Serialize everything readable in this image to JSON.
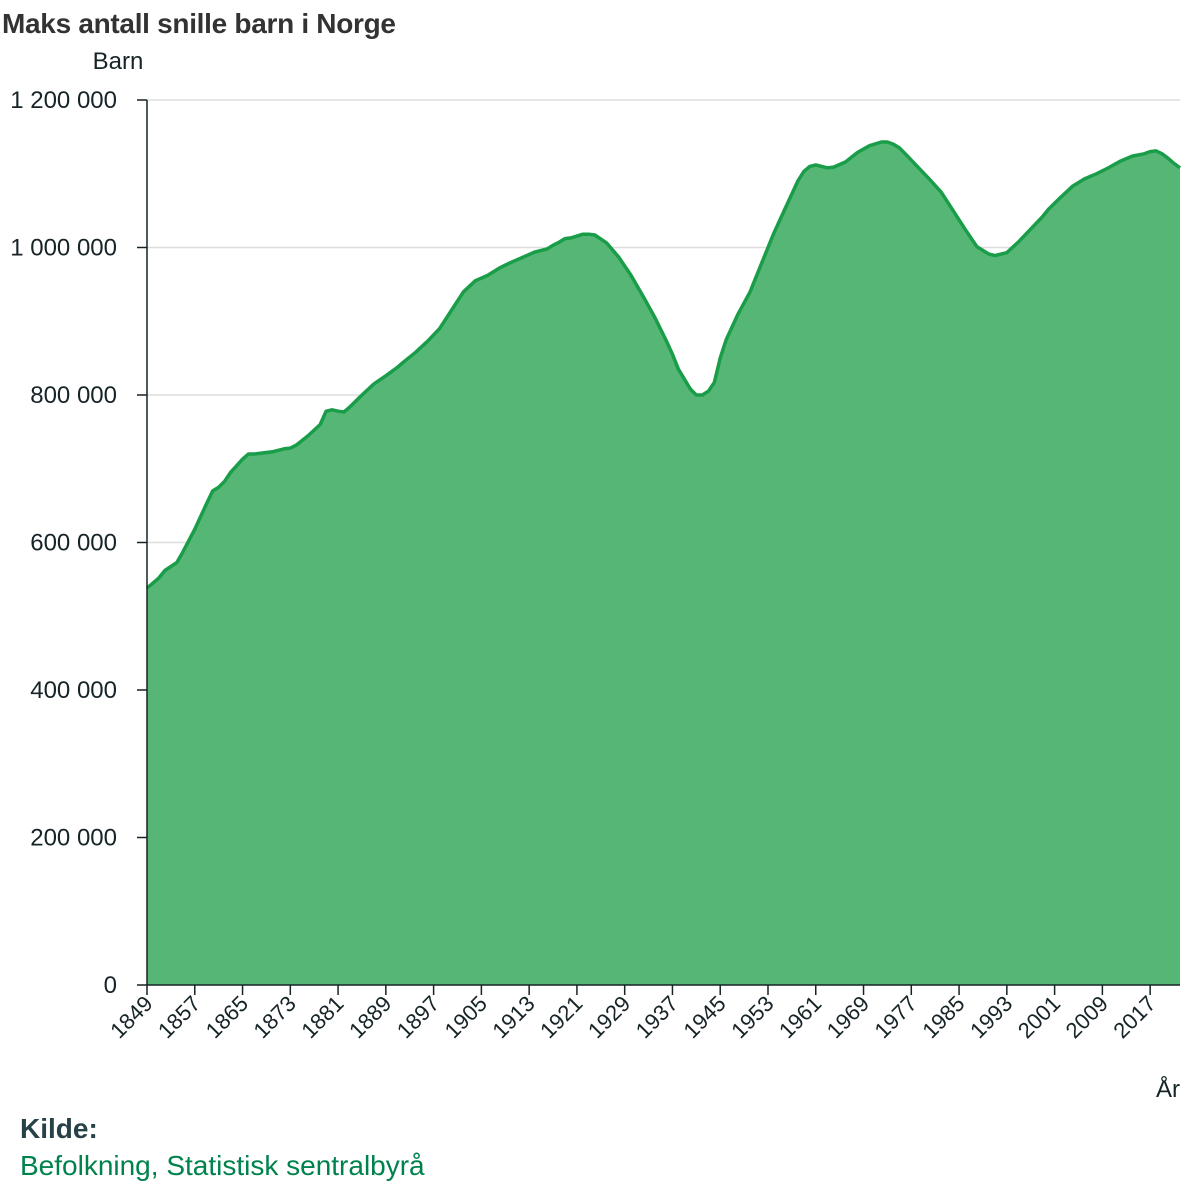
{
  "title": "Maks antall snille barn i Norge",
  "source": {
    "heading": "Kilde:",
    "link_text": "Befolkning, Statistisk sentralbyrå"
  },
  "colors": {
    "area_fill": "#56b676",
    "area_line": "#1a9d49",
    "grid": "#dddddd",
    "axis": "#162327",
    "link": "#00824d"
  },
  "chart_data": {
    "type": "area",
    "title": "Maks antall snille barn i Norge",
    "ylabel": "Barn",
    "xlabel": "År",
    "ylim": [
      0,
      1200000
    ],
    "xlim": [
      1849,
      2022
    ],
    "grid": true,
    "y_ticks": [
      0,
      200000,
      400000,
      600000,
      800000,
      1000000,
      1200000
    ],
    "y_tick_labels": [
      "0",
      "200 000",
      "400 000",
      "600 000",
      "800 000",
      "1 000 000",
      "1 200 000"
    ],
    "x_tick_labels": [
      "1849",
      "1857",
      "1865",
      "1873",
      "1881",
      "1889",
      "1897",
      "1905",
      "1913",
      "1921",
      "1929",
      "1937",
      "1945",
      "1953",
      "1961",
      "1969",
      "1977",
      "1985",
      "1993",
      "2001",
      "2009",
      "2017"
    ],
    "series": [
      {
        "x": [
          1849,
          1851,
          1852,
          1854,
          1855,
          1857,
          1859,
          1860,
          1861,
          1862,
          1863,
          1865,
          1866,
          1867,
          1869,
          1870,
          1872,
          1873,
          1874,
          1876,
          1878,
          1879,
          1880,
          1881,
          1882,
          1883,
          1885,
          1887,
          1889,
          1891,
          1892,
          1894,
          1896,
          1898,
          1900,
          1902,
          1904,
          1906,
          1908,
          1910,
          1912,
          1914,
          1916,
          1917,
          1918,
          1919,
          1920,
          1922,
          1923,
          1924,
          1926,
          1928,
          1930,
          1932,
          1934,
          1936,
          1937,
          1938,
          1940,
          1941,
          1942,
          1943,
          1944,
          1945,
          1946,
          1948,
          1950,
          1952,
          1954,
          1956,
          1958,
          1959,
          1960,
          1961,
          1962,
          1963,
          1964,
          1966,
          1968,
          1970,
          1972,
          1973,
          1974,
          1975,
          1976,
          1978,
          1980,
          1982,
          1984,
          1986,
          1988,
          1990,
          1991,
          1993,
          1995,
          1997,
          1999,
          2000,
          2002,
          2004,
          2006,
          2008,
          2010,
          2012,
          2014,
          2016,
          2017,
          2018,
          2019,
          2020,
          2021,
          2022
        ],
        "values": [
          538000,
          552000,
          562000,
          573000,
          587000,
          618000,
          653000,
          670000,
          675000,
          683000,
          695000,
          713000,
          720000,
          720000,
          722000,
          723000,
          727000,
          728000,
          732000,
          745000,
          760000,
          778000,
          780000,
          778000,
          777000,
          784000,
          800000,
          815000,
          826000,
          838000,
          845000,
          858000,
          873000,
          890000,
          915000,
          940000,
          955000,
          962000,
          972000,
          980000,
          987000,
          994000,
          998000,
          1003000,
          1007000,
          1012000,
          1013000,
          1018000,
          1018000,
          1017000,
          1006000,
          987000,
          963000,
          935000,
          906000,
          873000,
          855000,
          835000,
          808000,
          800000,
          800000,
          805000,
          817000,
          850000,
          875000,
          910000,
          940000,
          980000,
          1020000,
          1055000,
          1090000,
          1103000,
          1110000,
          1112000,
          1110000,
          1108000,
          1109000,
          1116000,
          1129000,
          1138000,
          1143000,
          1143000,
          1140000,
          1135000,
          1127000,
          1110000,
          1093000,
          1075000,
          1050000,
          1025000,
          1001000,
          991000,
          989000,
          993000,
          1008000,
          1025000,
          1042000,
          1052000,
          1068000,
          1083000,
          1093000,
          1100000,
          1108000,
          1117000,
          1124000,
          1127000,
          1130000,
          1131000,
          1127000,
          1121000,
          1114000,
          1108000
        ]
      }
    ]
  }
}
